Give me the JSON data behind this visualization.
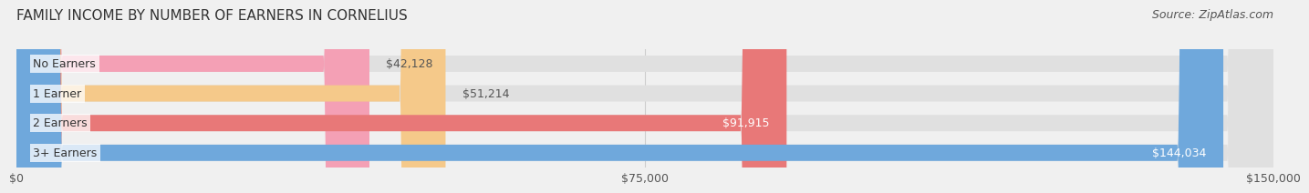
{
  "title": "FAMILY INCOME BY NUMBER OF EARNERS IN CORNELIUS",
  "source": "Source: ZipAtlas.com",
  "categories": [
    "No Earners",
    "1 Earner",
    "2 Earners",
    "3+ Earners"
  ],
  "values": [
    42128,
    51214,
    91915,
    144034
  ],
  "bar_colors": [
    "#f4a0b5",
    "#f5c98a",
    "#e87878",
    "#6fa8dc"
  ],
  "label_colors": [
    "#555555",
    "#555555",
    "#ffffff",
    "#ffffff"
  ],
  "max_value": 150000,
  "xticks": [
    0,
    75000,
    150000
  ],
  "xtick_labels": [
    "$0",
    "$75,000",
    "$150,000"
  ],
  "bar_height": 0.55,
  "background_color": "#f0f0f0",
  "bar_bg_color": "#e0e0e0",
  "title_fontsize": 11,
  "source_fontsize": 9,
  "label_fontsize": 9,
  "tick_fontsize": 9,
  "category_fontsize": 9
}
